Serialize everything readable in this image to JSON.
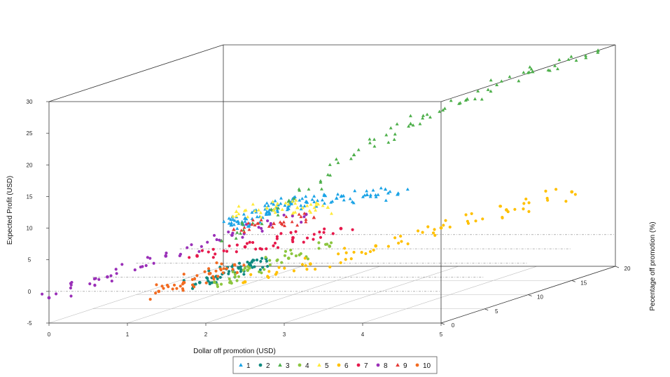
{
  "chart_data": {
    "type": "scatter",
    "xlabel": "Dollar off promotion (USD)",
    "ylabel": "Pecentage off promotion (%)",
    "zlabel": "Expected Profit (USD)",
    "xlim": [
      0,
      5
    ],
    "ylim": [
      0,
      20
    ],
    "zlim": [
      -5,
      30
    ],
    "x_ticks": [
      "0",
      "1",
      "2",
      "3",
      "4",
      "5"
    ],
    "y_ticks": [
      "0",
      "5",
      "10",
      "15",
      "20"
    ],
    "z_ticks": [
      "-5",
      "0",
      "5",
      "10",
      "15",
      "20",
      "25",
      "30"
    ],
    "legend_position": "bottom",
    "series": [
      {
        "name": "1",
        "color": "#1aa3e6",
        "marker": "triangle",
        "x": [
          0.1,
          0.3,
          0.5,
          0.8,
          1.0,
          1.2,
          1.5,
          2.0,
          2.5,
          3.0
        ],
        "y": [
          20,
          19,
          18,
          18,
          17,
          17,
          16,
          15,
          14,
          13
        ],
        "z": [
          1.5,
          2.5,
          3.5,
          4.5,
          5.5,
          6.5,
          7.0,
          8.0,
          9.0,
          9.5
        ]
      },
      {
        "name": "2",
        "color": "#108a80",
        "marker": "circle",
        "x": [
          1.7,
          1.8,
          1.9,
          2.0,
          2.1
        ],
        "y": [
          2,
          3,
          4,
          5,
          6
        ],
        "z": [
          0.5,
          1.0,
          1.5,
          2.0,
          2.5
        ]
      },
      {
        "name": "3",
        "color": "#4daf4a",
        "marker": "triangle",
        "x": [
          2.2,
          2.5,
          3.0,
          3.5,
          4.0,
          4.5,
          5.0
        ],
        "y": [
          0,
          5,
          8,
          10,
          12,
          15,
          18
        ],
        "z": [
          8,
          12,
          18,
          22,
          25,
          28,
          30
        ]
      },
      {
        "name": "4",
        "color": "#8cc63f",
        "marker": "circle",
        "x": [
          2.0,
          2.2,
          2.5,
          2.8
        ],
        "y": [
          1,
          3,
          5,
          7
        ],
        "z": [
          1.0,
          2.0,
          3.0,
          4.0
        ]
      },
      {
        "name": "5",
        "color": "#ffea3a",
        "marker": "triangle",
        "x": [
          0.5,
          1.0,
          1.5,
          2.0
        ],
        "y": [
          17,
          16,
          15,
          14
        ],
        "z": [
          5.0,
          6.0,
          6.5,
          7.0
        ]
      },
      {
        "name": "6",
        "color": "#ffc000",
        "marker": "circle",
        "x": [
          2.5,
          3.0,
          3.5,
          4.0,
          4.5,
          5.0
        ],
        "y": [
          0,
          3,
          6,
          9,
          12,
          15
        ],
        "z": [
          1.5,
          3.0,
          4.5,
          6.0,
          7.5,
          9.0
        ]
      },
      {
        "name": "7",
        "color": "#e6194b",
        "marker": "circle",
        "x": [
          1.0,
          1.5,
          2.0,
          2.5
        ],
        "y": [
          8,
          9,
          10,
          11
        ],
        "z": [
          2.0,
          3.0,
          4.0,
          5.0
        ]
      },
      {
        "name": "8",
        "color": "#9a30b8",
        "marker": "circle",
        "x": [
          0.0,
          0.3,
          0.6,
          1.0,
          1.5
        ],
        "y": [
          0,
          4,
          8,
          12,
          16
        ],
        "z": [
          -1.0,
          0.5,
          2.0,
          3.5,
          5.0
        ]
      },
      {
        "name": "9",
        "color": "#e53935",
        "marker": "triangle",
        "x": [
          0.8,
          1.2,
          1.6
        ],
        "y": [
          14,
          15,
          16
        ],
        "z": [
          3.5,
          4.0,
          4.5
        ]
      },
      {
        "name": "10",
        "color": "#f26b21",
        "marker": "circle",
        "x": [
          1.4,
          1.5,
          1.6,
          1.7
        ],
        "y": [
          0,
          2,
          4,
          6
        ],
        "z": [
          0.0,
          0.5,
          1.0,
          1.5
        ]
      }
    ]
  }
}
